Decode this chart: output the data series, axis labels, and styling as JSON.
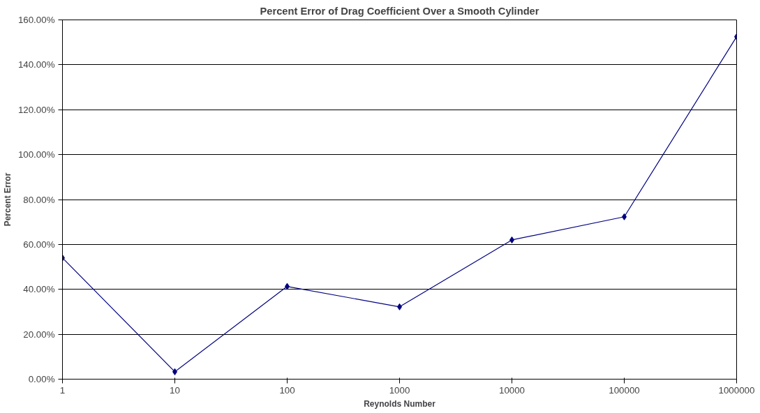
{
  "chart_data": {
    "type": "line",
    "title": "Percent Error of Drag Coefficient Over a Smooth Cylinder",
    "xlabel": "Reynolds Number",
    "ylabel": "Percent Error",
    "x": [
      1,
      10,
      100,
      1000,
      10000,
      100000,
      1000000
    ],
    "series": [
      {
        "color": "#000080",
        "values": [
          54,
          3.3,
          41.3,
          32.2,
          62,
          72.3,
          152.5
        ]
      }
    ],
    "log": "x",
    "xlim": [
      1,
      1000000
    ],
    "xticks": [
      1,
      10,
      100,
      1000,
      10000,
      100000,
      1000000
    ],
    "ylim": [
      0,
      160
    ],
    "yticks": [
      {
        "value": 0,
        "label": "0.00%"
      },
      {
        "value": 20,
        "label": "20.00%"
      },
      {
        "value": 40,
        "label": "40.00%"
      },
      {
        "value": 60,
        "label": "60.00%"
      },
      {
        "value": 80,
        "label": "80.00%"
      },
      {
        "value": 100,
        "label": "100.00%"
      },
      {
        "value": 120,
        "label": "120.00%"
      },
      {
        "value": 140,
        "label": "140.00%"
      },
      {
        "value": 160,
        "label": "160.00%"
      }
    ],
    "grid": "y",
    "marker": "diamond",
    "line_style": "solid"
  }
}
